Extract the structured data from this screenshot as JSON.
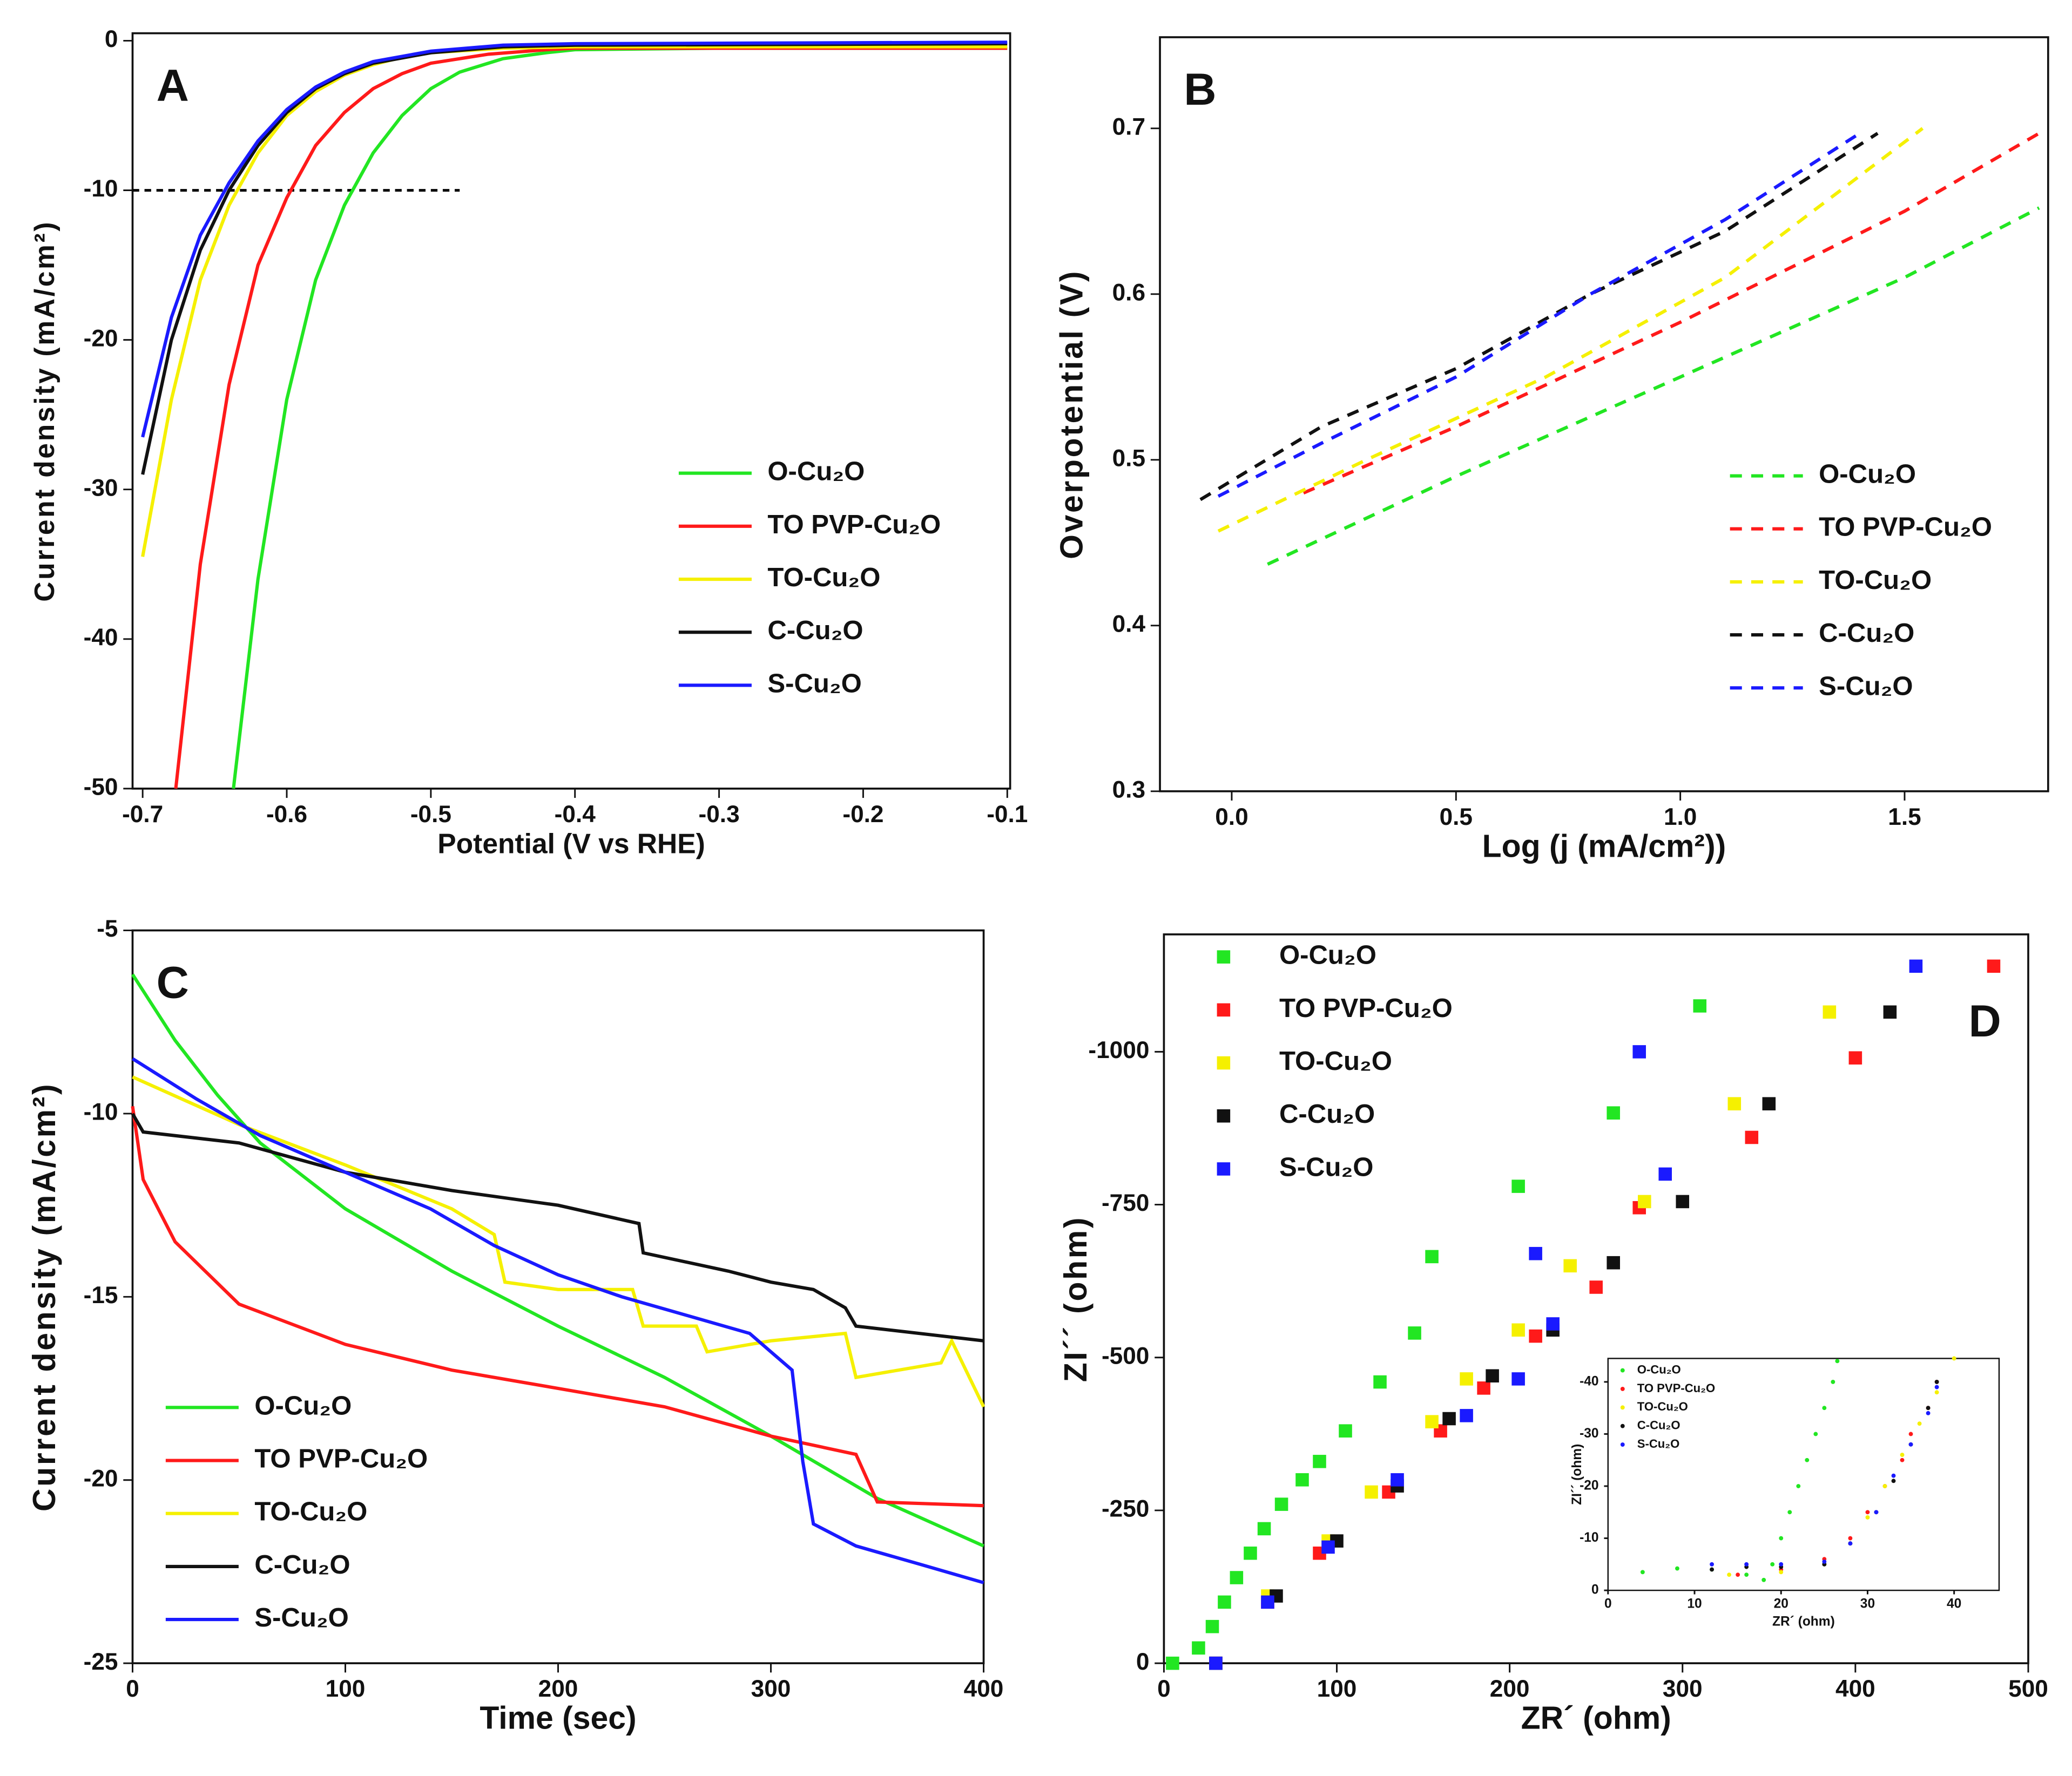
{
  "chart_data": [
    {
      "type": "line",
      "label": "A",
      "x_label": "Potential (V vs RHE)",
      "y_label": "Current density (mA/cm²)",
      "xlim": [
        -0.707,
        -0.098
      ],
      "xticks": [
        -0.7,
        -0.6,
        -0.5,
        -0.4,
        -0.3,
        -0.2,
        -0.1
      ],
      "ylim": [
        -50,
        0.5
      ],
      "yticks": [
        0,
        -10,
        -20,
        -30,
        -40,
        -50
      ],
      "line_style": "solid",
      "legend": "lower right",
      "reference_line": {
        "y": -10,
        "x": [
          -0.707,
          -0.48
        ],
        "color": "#000000"
      },
      "series": [
        {
          "name": "O-Cu₂O",
          "color": "#22e622",
          "x": [
            -0.637,
            -0.62,
            -0.6,
            -0.58,
            -0.56,
            -0.54,
            -0.52,
            -0.5,
            -0.48,
            -0.45,
            -0.42,
            -0.4,
            -0.3,
            -0.2,
            -0.1
          ],
          "values": [
            -50,
            -36,
            -24,
            -16,
            -11,
            -7.5,
            -5,
            -3.2,
            -2.1,
            -1.2,
            -0.8,
            -0.6,
            -0.5,
            -0.5,
            -0.5
          ]
        },
        {
          "name": "TO PVP-Cu₂O",
          "color": "#ff1a1a",
          "x": [
            -0.677,
            -0.66,
            -0.64,
            -0.62,
            -0.6,
            -0.58,
            -0.56,
            -0.54,
            -0.52,
            -0.5,
            -0.46,
            -0.42,
            -0.4,
            -0.3,
            -0.1
          ],
          "values": [
            -50,
            -35,
            -23,
            -15,
            -10.5,
            -7,
            -4.8,
            -3.2,
            -2.2,
            -1.5,
            -0.9,
            -0.6,
            -0.5,
            -0.5,
            -0.5
          ]
        },
        {
          "name": "TO-Cu₂O",
          "color": "#f5f000",
          "x": [
            -0.7,
            -0.68,
            -0.66,
            -0.64,
            -0.62,
            -0.6,
            -0.58,
            -0.56,
            -0.54,
            -0.52,
            -0.5,
            -0.45,
            -0.4,
            -0.3,
            -0.1
          ],
          "values": [
            -34.5,
            -24,
            -16,
            -11,
            -7.5,
            -5,
            -3.4,
            -2.3,
            -1.6,
            -1.1,
            -0.8,
            -0.5,
            -0.4,
            -0.4,
            -0.4
          ]
        },
        {
          "name": "C-Cu₂O",
          "color": "#111111",
          "x": [
            -0.7,
            -0.68,
            -0.66,
            -0.64,
            -0.62,
            -0.6,
            -0.58,
            -0.56,
            -0.54,
            -0.5,
            -0.45,
            -0.4,
            -0.1
          ],
          "values": [
            -29,
            -20,
            -14,
            -10,
            -7,
            -4.8,
            -3.2,
            -2.2,
            -1.5,
            -0.8,
            -0.4,
            -0.3,
            -0.2
          ]
        },
        {
          "name": "S-Cu₂O",
          "color": "#1a1aff",
          "x": [
            -0.7,
            -0.68,
            -0.66,
            -0.64,
            -0.62,
            -0.6,
            -0.58,
            -0.56,
            -0.54,
            -0.5,
            -0.45,
            -0.4,
            -0.1
          ],
          "values": [
            -26.5,
            -18.5,
            -13,
            -9.5,
            -6.7,
            -4.6,
            -3.1,
            -2.1,
            -1.4,
            -0.7,
            -0.3,
            -0.2,
            -0.1
          ]
        }
      ]
    },
    {
      "type": "line",
      "label": "B",
      "x_label": "Log (j (mA/cm²))",
      "y_label": "Overpotential (V)",
      "xlim": [
        -0.16,
        1.82
      ],
      "xticks": [
        {
          "value": 0,
          "label": "0.0"
        },
        0.5,
        {
          "value": 1,
          "label": "1.0"
        },
        1.5
      ],
      "ylim": [
        0.3,
        0.755
      ],
      "yticks": [
        0.3,
        0.4,
        0.5,
        0.6,
        0.7
      ],
      "line_style": "dashed",
      "legend": "lower right",
      "series": [
        {
          "name": "O-Cu₂O",
          "color": "#22e622",
          "x": [
            0.08,
            0.5,
            1.0,
            1.5,
            1.8
          ],
          "values": [
            0.437,
            0.49,
            0.55,
            0.61,
            0.652
          ]
        },
        {
          "name": "TO PVP-Cu₂O",
          "color": "#ff1a1a",
          "x": [
            0.16,
            0.5,
            1.0,
            1.5,
            1.8
          ],
          "values": [
            0.48,
            0.52,
            0.583,
            0.65,
            0.697
          ]
        },
        {
          "name": "TO-Cu₂O",
          "color": "#f5f000",
          "x": [
            -0.03,
            0.3,
            0.7,
            1.1,
            1.54
          ],
          "values": [
            0.457,
            0.5,
            0.55,
            0.61,
            0.7
          ]
        },
        {
          "name": "C-Cu₂O",
          "color": "#111111",
          "x": [
            -0.07,
            0.2,
            0.5,
            0.8,
            1.1,
            1.44
          ],
          "values": [
            0.476,
            0.52,
            0.555,
            0.6,
            0.638,
            0.697
          ]
        },
        {
          "name": "S-Cu₂O",
          "color": "#1a1aff",
          "x": [
            -0.03,
            0.2,
            0.5,
            0.8,
            1.1,
            1.4
          ],
          "values": [
            0.478,
            0.51,
            0.55,
            0.6,
            0.645,
            0.697
          ]
        }
      ]
    },
    {
      "type": "line",
      "label": "C",
      "x_label": "Time (sec)",
      "y_label": "Current density (mA/cm²)",
      "xlim": [
        0,
        400
      ],
      "xticks": [
        0,
        100,
        200,
        300,
        400
      ],
      "ylim": [
        -25,
        -5
      ],
      "yticks": [
        -5,
        -10,
        -15,
        -20,
        -25
      ],
      "line_style": "solid",
      "legend": "lower left",
      "series": [
        {
          "name": "O-Cu₂O",
          "color": "#22e622",
          "x": [
            0,
            20,
            40,
            60,
            100,
            150,
            200,
            250,
            300,
            350,
            400
          ],
          "values": [
            -6.2,
            -8,
            -9.5,
            -10.8,
            -12.6,
            -14.3,
            -15.8,
            -17.2,
            -18.8,
            -20.5,
            -21.8
          ]
        },
        {
          "name": "TO PVP-Cu₂O",
          "color": "#ff1a1a",
          "x": [
            0,
            5,
            20,
            50,
            100,
            150,
            200,
            250,
            300,
            340,
            350,
            400
          ],
          "values": [
            -9.8,
            -11.8,
            -13.5,
            -15.2,
            -16.3,
            -17,
            -17.5,
            -18,
            -18.8,
            -19.3,
            -20.6,
            -20.7
          ]
        },
        {
          "name": "TO-Cu₂O",
          "color": "#f5f000",
          "x": [
            0,
            50,
            100,
            150,
            170,
            175,
            200,
            235,
            240,
            265,
            270,
            300,
            335,
            340,
            380,
            385,
            400
          ],
          "values": [
            -9,
            -10.3,
            -11.4,
            -12.6,
            -13.3,
            -14.6,
            -14.8,
            -14.8,
            -15.8,
            -15.8,
            -16.5,
            -16.2,
            -16,
            -17.2,
            -16.8,
            -16.2,
            -18
          ]
        },
        {
          "name": "C-Cu₂O",
          "color": "#111111",
          "x": [
            0,
            5,
            50,
            100,
            150,
            200,
            238,
            240,
            280,
            300,
            320,
            335,
            340,
            400
          ],
          "values": [
            -10,
            -10.5,
            -10.8,
            -11.6,
            -12.1,
            -12.5,
            -13,
            -13.8,
            -14.3,
            -14.6,
            -14.8,
            -15.3,
            -15.8,
            -16.2
          ]
        },
        {
          "name": "S-Cu₂O",
          "color": "#1a1aff",
          "x": [
            0,
            30,
            60,
            100,
            140,
            170,
            200,
            230,
            260,
            290,
            300,
            310,
            315,
            320,
            340,
            370,
            400
          ],
          "values": [
            -8.5,
            -9.6,
            -10.6,
            -11.6,
            -12.6,
            -13.6,
            -14.4,
            -15,
            -15.5,
            -16,
            -16.5,
            -17,
            -19.5,
            -21.2,
            -21.8,
            -22.3,
            -22.8
          ]
        }
      ]
    },
    {
      "type": "scatter",
      "label": "D",
      "x_label": "ZR´ (ohm)",
      "y_label": "ZI´´ (ohm)",
      "xlim": [
        0,
        500
      ],
      "xticks": [
        0,
        100,
        200,
        300,
        400,
        500
      ],
      "ylim": [
        0,
        -1192
      ],
      "yticks": [
        0,
        -250,
        -500,
        -750,
        -1000
      ],
      "marker": "square",
      "legend": "upper left",
      "series": [
        {
          "name": "O-Cu₂O",
          "color": "#22e622",
          "x": [
            5,
            20,
            28,
            35,
            42,
            50,
            58,
            68,
            80,
            90,
            105,
            125,
            145,
            155,
            205,
            260,
            310
          ],
          "values": [
            0,
            -25,
            -60,
            -100,
            -140,
            -180,
            -220,
            -260,
            -300,
            -330,
            -380,
            -460,
            -540,
            -665,
            -780,
            -900,
            -1075
          ]
        },
        {
          "name": "TO PVP-Cu₂O",
          "color": "#ff1a1a",
          "x": [
            30,
            60,
            90,
            130,
            160,
            185,
            215,
            250,
            275,
            340,
            400,
            480
          ],
          "values": [
            0,
            -100,
            -180,
            -280,
            -380,
            -450,
            -535,
            -615,
            -745,
            -860,
            -990,
            -1140
          ]
        },
        {
          "name": "TO-Cu₂O",
          "color": "#f5f000",
          "x": [
            30,
            60,
            95,
            120,
            155,
            175,
            205,
            235,
            278,
            330,
            385
          ],
          "values": [
            0,
            -110,
            -200,
            -280,
            -395,
            -465,
            -545,
            -650,
            -755,
            -915,
            -1065
          ]
        },
        {
          "name": "C-Cu₂O",
          "color": "#111111",
          "x": [
            30,
            65,
            100,
            135,
            165,
            190,
            225,
            260,
            300,
            350,
            420
          ],
          "values": [
            0,
            -110,
            -200,
            -290,
            -400,
            -470,
            -545,
            -655,
            -755,
            -915,
            -1065
          ]
        },
        {
          "name": "S-Cu₂O",
          "color": "#1a1aff",
          "x": [
            30,
            60,
            95,
            135,
            175,
            205,
            225,
            215,
            290,
            275,
            435
          ],
          "values": [
            0,
            -100,
            -190,
            -300,
            -405,
            -465,
            -555,
            -670,
            -800,
            -1000,
            -1140
          ]
        }
      ]
    },
    {
      "type": "scatter",
      "x_label": "ZR´ (ohm)",
      "y_label": "ZI´´ (ohm)",
      "xlim": [
        0,
        45.2
      ],
      "xticks": [
        0,
        10,
        20,
        30,
        40
      ],
      "ylim": [
        0,
        -44.5
      ],
      "yticks": [
        0,
        -10,
        -20,
        -30,
        -40
      ],
      "marker": "dot",
      "legend": "upper left",
      "series": [
        {
          "name": "O-Cu₂O",
          "color": "#22e622",
          "x": [
            4,
            8,
            12,
            16,
            18,
            19,
            20,
            21,
            22,
            23,
            24,
            25,
            26,
            26.5
          ],
          "values": [
            -3.5,
            -4.2,
            -4,
            -3,
            -2,
            -5,
            -10,
            -15,
            -20,
            -25,
            -30,
            -35,
            -40,
            -44
          ]
        },
        {
          "name": "TO PVP-Cu₂O",
          "color": "#ff1a1a",
          "x": [
            15,
            20,
            25,
            28,
            30,
            32,
            34,
            35,
            37,
            38
          ],
          "values": [
            -3,
            -4,
            -6,
            -10,
            -15,
            -20,
            -25,
            -30,
            -35,
            -40
          ]
        },
        {
          "name": "TO-Cu₂O",
          "color": "#f5f000",
          "x": [
            14,
            20,
            25,
            28,
            30,
            32,
            34,
            36,
            38,
            40
          ],
          "values": [
            -3,
            -3.5,
            -5,
            -9,
            -14,
            -20,
            -26,
            -32,
            -38,
            -44.5
          ]
        },
        {
          "name": "C-Cu₂O",
          "color": "#111111",
          "x": [
            12,
            16,
            20,
            25,
            28,
            31,
            33,
            35,
            37,
            38
          ],
          "values": [
            -4,
            -4.5,
            -4.5,
            -5,
            -9,
            -15,
            -21,
            -28,
            -35,
            -40
          ]
        },
        {
          "name": "S-Cu₂O",
          "color": "#1a1aff",
          "x": [
            12,
            16,
            20,
            25,
            28,
            31,
            33,
            35,
            37,
            38
          ],
          "values": [
            -5,
            -5,
            -5,
            -5.5,
            -9,
            -15,
            -22,
            -28,
            -34,
            -39
          ]
        }
      ]
    }
  ]
}
